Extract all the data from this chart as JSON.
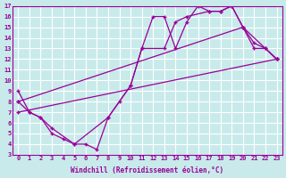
{
  "xlabel": "Windchill (Refroidissement éolien,°C)",
  "bg_color": "#c8eaea",
  "line_color": "#990099",
  "grid_color": "#ffffff",
  "xlim": [
    -0.5,
    23.5
  ],
  "ylim": [
    3,
    17
  ],
  "xticks": [
    0,
    1,
    2,
    3,
    4,
    5,
    6,
    7,
    8,
    9,
    10,
    11,
    12,
    13,
    14,
    15,
    16,
    17,
    18,
    19,
    20,
    21,
    22,
    23
  ],
  "yticks": [
    3,
    4,
    5,
    6,
    7,
    8,
    9,
    10,
    11,
    12,
    13,
    14,
    15,
    16,
    17
  ],
  "line1_x": [
    0,
    1,
    2,
    3,
    4,
    5,
    6,
    7,
    8,
    9,
    10,
    11,
    12,
    13,
    14,
    15,
    16,
    17,
    18,
    19,
    20,
    21,
    22,
    23
  ],
  "line1_y": [
    9,
    7,
    6.5,
    5,
    4.5,
    4,
    4,
    3.5,
    6.5,
    8,
    9.5,
    13,
    16,
    16,
    13,
    15.5,
    17,
    16.5,
    16.5,
    17,
    15,
    13,
    13,
    12
  ],
  "line2_x": [
    0,
    1,
    2,
    3,
    5,
    8,
    10,
    11,
    13,
    14,
    15,
    17,
    18,
    19,
    20,
    21,
    22,
    23
  ],
  "line2_y": [
    8,
    7,
    6.5,
    5.5,
    4,
    6.5,
    9.5,
    13,
    13,
    15.5,
    16,
    16.5,
    16.5,
    17,
    15,
    13.5,
    13,
    12
  ],
  "line3_x": [
    0,
    23
  ],
  "line3_y": [
    7,
    12
  ],
  "line4_x": [
    0,
    20,
    23
  ],
  "line4_y": [
    8,
    15,
    12
  ]
}
